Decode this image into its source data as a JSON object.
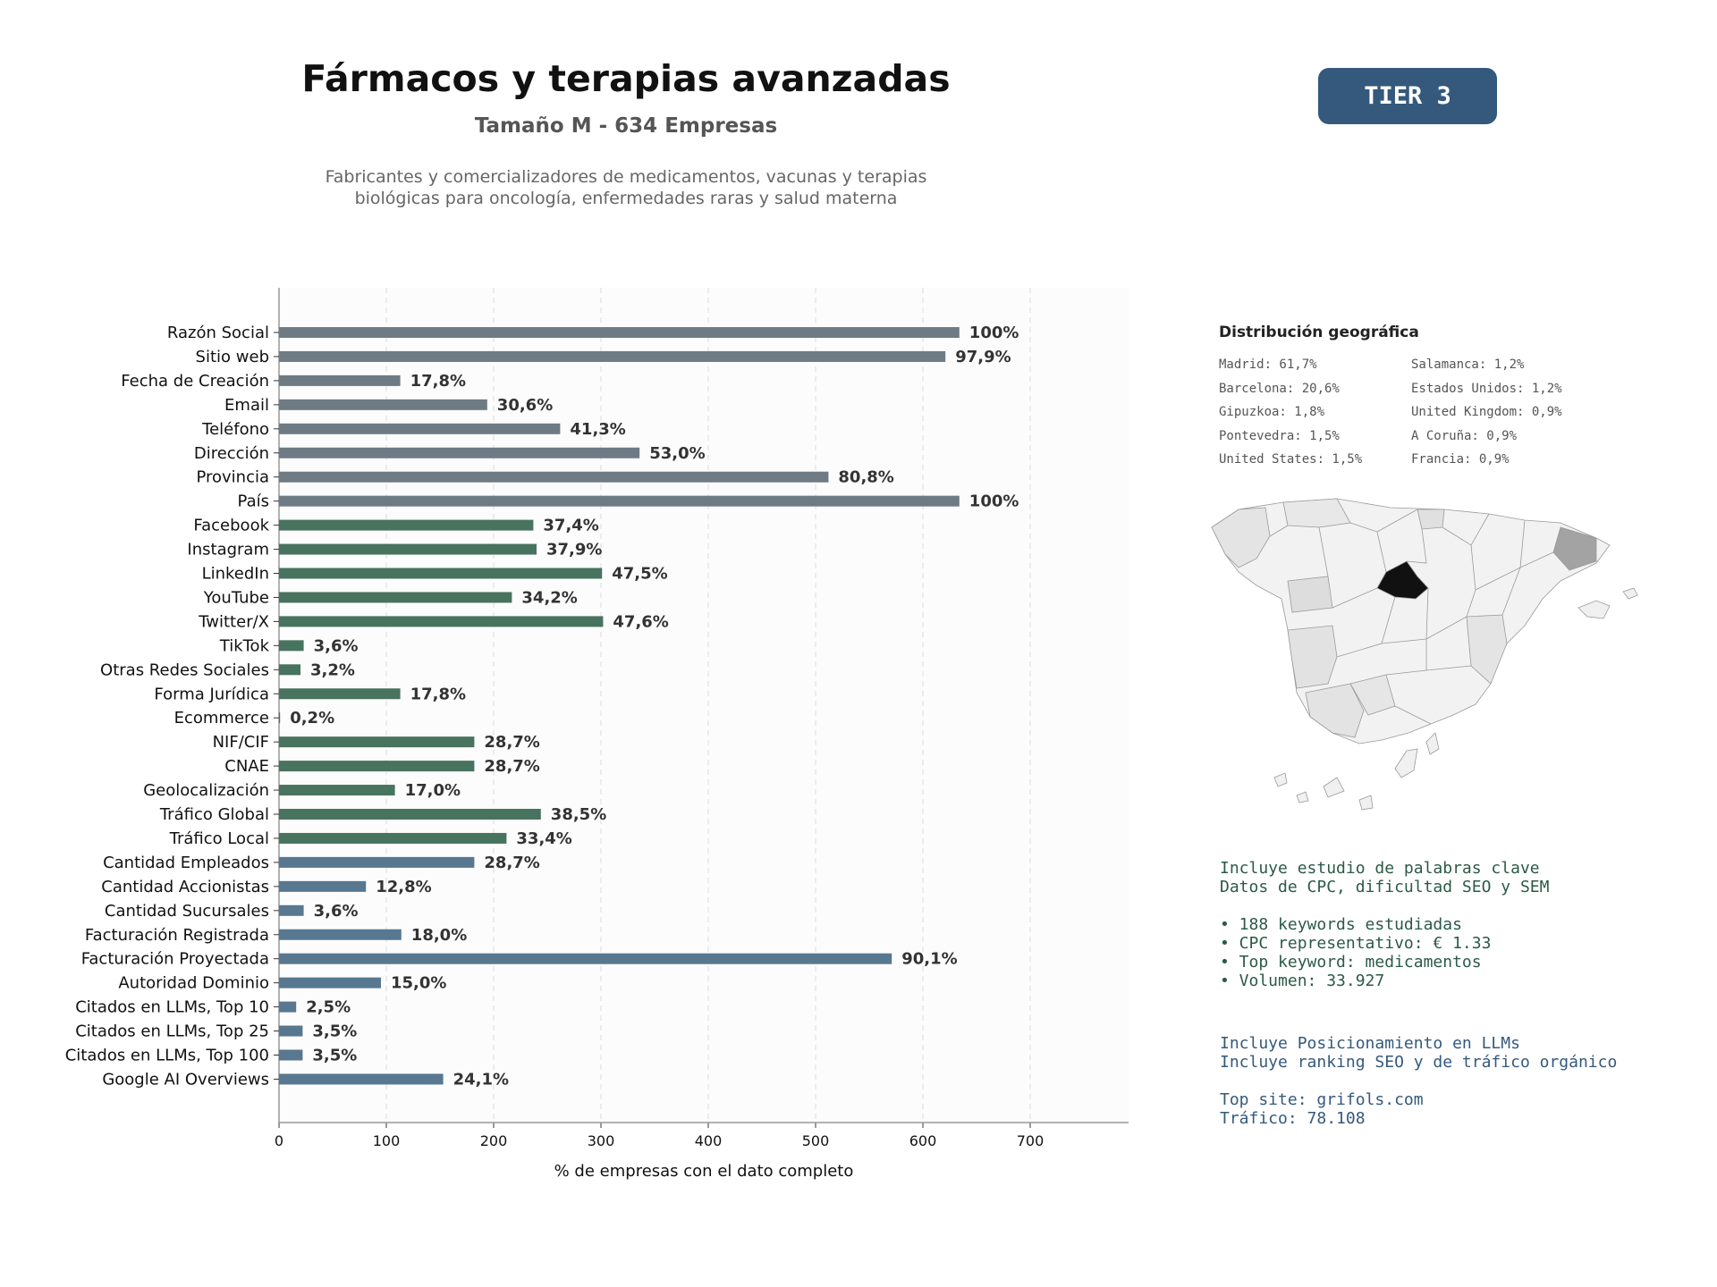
{
  "header": {
    "title": "Fármacos y terapias avanzadas",
    "subtitle": "Tamaño M - 634 Empresas",
    "description_lines": [
      "Fabricantes y comercializadores de medicamentos, vacunas y terapias",
      "biológicas para oncología, enfermedades raras y salud materna"
    ]
  },
  "tier_badge": "TIER 3",
  "chart_data": {
    "type": "bar",
    "orientation": "horizontal",
    "xlabel": "% de empresas con el dato completo",
    "xlim": [
      0,
      790
    ],
    "xticks": [
      0,
      100,
      200,
      300,
      400,
      500,
      600,
      700
    ],
    "grid": "vertical dashed",
    "categories": [
      "Razón Social",
      "Sitio web",
      "Fecha de Creación",
      "Email",
      "Teléfono",
      "Dirección",
      "Provincia",
      "País",
      "Facebook",
      "Instagram",
      "LinkedIn",
      "YouTube",
      "Twitter/X",
      "TikTok",
      "Otras Redes Sociales",
      "Forma Jurídica",
      "Ecommerce",
      "NIF/CIF",
      "CNAE",
      "Geolocalización",
      "Tráfico Global",
      "Tráfico Local",
      "Cantidad Empleados",
      "Cantidad Accionistas",
      "Cantidad Sucursales",
      "Facturación Registrada",
      "Facturación Proyectada",
      "Autoridad Dominio",
      "Citados en LLMs, Top 10",
      "Citados en LLMs, Top 25",
      "Citados en LLMs, Top 100",
      "Google AI Overviews"
    ],
    "values": [
      634,
      621,
      113,
      194,
      262,
      336,
      512,
      634,
      237,
      240,
      301,
      217,
      302,
      23,
      20,
      113,
      1,
      182,
      182,
      108,
      244,
      212,
      182,
      81,
      23,
      114,
      571,
      95,
      16,
      22,
      22,
      153
    ],
    "labels": [
      "100%",
      "97,9%",
      "17,8%",
      "30,6%",
      "41,3%",
      "53,0%",
      "80,8%",
      "100%",
      "37,4%",
      "37,9%",
      "47,5%",
      "34,2%",
      "47,6%",
      "3,6%",
      "3,2%",
      "17,8%",
      "0,2%",
      "28,7%",
      "28,7%",
      "17,0%",
      "38,5%",
      "33,4%",
      "28,7%",
      "12,8%",
      "3,6%",
      "18,0%",
      "90,1%",
      "15,0%",
      "2,5%",
      "3,5%",
      "3,5%",
      "24,1%"
    ],
    "group_colors": {
      "basic": "#6e7b85",
      "digital": "#48735f",
      "business": "#587790"
    },
    "groups": [
      "basic",
      "basic",
      "basic",
      "basic",
      "basic",
      "basic",
      "basic",
      "basic",
      "digital",
      "digital",
      "digital",
      "digital",
      "digital",
      "digital",
      "digital",
      "digital",
      "digital",
      "digital",
      "digital",
      "digital",
      "digital",
      "digital",
      "business",
      "business",
      "business",
      "business",
      "business",
      "business",
      "business",
      "business",
      "business",
      "business"
    ]
  },
  "geo": {
    "title": "Distribución geográfica",
    "items": [
      "Madrid: 61,7%",
      "Barcelona: 20,6%",
      "Gipuzkoa: 1,8%",
      "Pontevedra: 1,5%",
      "United States: 1,5%",
      "Salamanca: 1,2%",
      "Estados Unidos: 1,2%",
      "United Kingdom: 0,9%",
      "A Coruña: 0,9%",
      "Francia: 0,9%"
    ]
  },
  "keywords": {
    "lines": [
      "Incluye estudio de palabras clave",
      "Datos de CPC, dificultad SEO y SEM"
    ],
    "bullets": [
      "• 188 keywords estudiadas",
      "• CPC representativo: € 1.33",
      "• Top keyword: medicamentos",
      "• Volumen: 33.927"
    ]
  },
  "llm": {
    "lines": [
      "Incluye Posicionamiento en LLMs",
      "Incluye ranking SEO y de tráfico orgánico"
    ],
    "site_lines": [
      "Top site: grifols.com",
      "Tráfico: 78.108"
    ]
  }
}
